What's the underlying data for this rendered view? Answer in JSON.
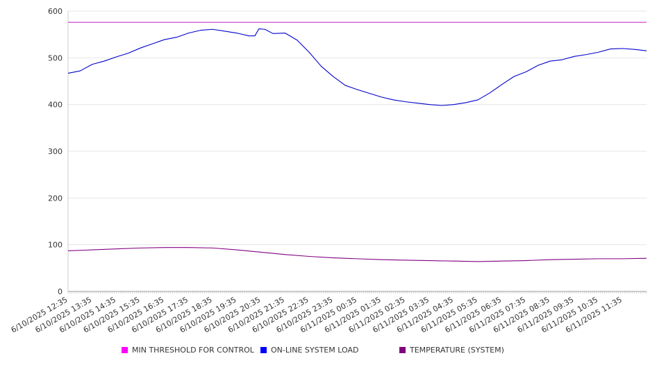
{
  "chart_data": {
    "type": "line",
    "title": "",
    "xlabel": "",
    "ylabel": "",
    "ylim": [
      0,
      600
    ],
    "y_ticks": [
      0,
      100,
      200,
      300,
      400,
      500,
      600
    ],
    "grid": "horizontal",
    "legend_position": "bottom",
    "x_tick_labels": [
      "6/10/2025 12:35",
      "6/10/2025 13:35",
      "6/10/2025 14:35",
      "6/10/2025 15:35",
      "6/10/2025 16:35",
      "6/10/2025 17:35",
      "6/10/2025 18:35",
      "6/10/2025 19:35",
      "6/10/2025 20:35",
      "6/10/2025 21:35",
      "6/10/2025 22:35",
      "6/10/2025 23:35",
      "6/11/2025 00:35",
      "6/11/2025 01:35",
      "6/11/2025 02:35",
      "6/11/2025 03:35",
      "6/11/2025 04:35",
      "6/11/2025 05:35",
      "6/11/2025 06:35",
      "6/11/2025 07:35",
      "6/11/2025 08:35",
      "6/11/2025 09:35",
      "6/11/2025 10:35",
      "6/11/2025 11:35"
    ],
    "x_range": [
      "6/10/2025 12:35",
      "6/11/2025 12:35"
    ],
    "series": [
      {
        "name": "MIN THRESHOLD FOR CONTROL",
        "color": "#cc33cc",
        "swatch_color": "#ff00ff",
        "points": [
          [
            "6/10/2025 12:35",
            576
          ],
          [
            "6/11/2025 12:35",
            576
          ]
        ]
      },
      {
        "name": "ON-LINE SYSTEM LOAD",
        "color": "#0000cc",
        "swatch_color": "#0000ff",
        "points": [
          [
            "6/10/2025 12:35",
            467
          ],
          [
            "6/10/2025 13:05",
            472
          ],
          [
            "6/10/2025 13:35",
            486
          ],
          [
            "6/10/2025 14:05",
            493
          ],
          [
            "6/10/2025 14:35",
            502
          ],
          [
            "6/10/2025 15:05",
            510
          ],
          [
            "6/10/2025 15:35",
            521
          ],
          [
            "6/10/2025 16:05",
            530
          ],
          [
            "6/10/2025 16:35",
            539
          ],
          [
            "6/10/2025 17:05",
            544
          ],
          [
            "6/10/2025 17:35",
            553
          ],
          [
            "6/10/2025 18:05",
            559
          ],
          [
            "6/10/2025 18:35",
            561
          ],
          [
            "6/10/2025 19:05",
            557
          ],
          [
            "6/10/2025 19:35",
            553
          ],
          [
            "6/10/2025 20:05",
            547
          ],
          [
            "6/10/2025 20:20",
            547
          ],
          [
            "6/10/2025 20:30",
            562
          ],
          [
            "6/10/2025 20:45",
            561
          ],
          [
            "6/10/2025 21:05",
            552
          ],
          [
            "6/10/2025 21:35",
            553
          ],
          [
            "6/10/2025 22:05",
            538
          ],
          [
            "6/10/2025 22:35",
            512
          ],
          [
            "6/10/2025 23:05",
            482
          ],
          [
            "6/10/2025 23:35",
            460
          ],
          [
            "6/11/2025 00:05",
            441
          ],
          [
            "6/11/2025 00:35",
            432
          ],
          [
            "6/11/2025 01:05",
            424
          ],
          [
            "6/11/2025 01:35",
            416
          ],
          [
            "6/11/2025 02:05",
            410
          ],
          [
            "6/11/2025 02:35",
            406
          ],
          [
            "6/11/2025 03:05",
            403
          ],
          [
            "6/11/2025 03:35",
            400
          ],
          [
            "6/11/2025 04:05",
            398
          ],
          [
            "6/11/2025 04:35",
            400
          ],
          [
            "6/11/2025 05:05",
            404
          ],
          [
            "6/11/2025 05:35",
            410
          ],
          [
            "6/11/2025 06:05",
            425
          ],
          [
            "6/11/2025 06:35",
            443
          ],
          [
            "6/11/2025 07:05",
            460
          ],
          [
            "6/11/2025 07:35",
            470
          ],
          [
            "6/11/2025 08:05",
            484
          ],
          [
            "6/11/2025 08:35",
            493
          ],
          [
            "6/11/2025 09:05",
            496
          ],
          [
            "6/11/2025 09:35",
            503
          ],
          [
            "6/11/2025 10:05",
            507
          ],
          [
            "6/11/2025 10:35",
            512
          ],
          [
            "6/11/2025 11:05",
            519
          ],
          [
            "6/11/2025 11:35",
            520
          ],
          [
            "6/11/2025 12:05",
            518
          ],
          [
            "6/11/2025 12:35",
            515
          ]
        ]
      },
      {
        "name": "TEMPERATURE (SYSTEM)",
        "color": "#800080",
        "swatch_color": "#800080",
        "points": [
          [
            "6/10/2025 12:35",
            87
          ],
          [
            "6/10/2025 13:35",
            89
          ],
          [
            "6/10/2025 14:35",
            91
          ],
          [
            "6/10/2025 15:35",
            93
          ],
          [
            "6/10/2025 16:35",
            94
          ],
          [
            "6/10/2025 17:35",
            94
          ],
          [
            "6/10/2025 18:35",
            93
          ],
          [
            "6/10/2025 19:35",
            89
          ],
          [
            "6/10/2025 20:35",
            84
          ],
          [
            "6/10/2025 21:35",
            79
          ],
          [
            "6/10/2025 22:35",
            75
          ],
          [
            "6/10/2025 23:35",
            72
          ],
          [
            "6/11/2025 00:35",
            70
          ],
          [
            "6/11/2025 01:35",
            68
          ],
          [
            "6/11/2025 02:35",
            67
          ],
          [
            "6/11/2025 03:35",
            66
          ],
          [
            "6/11/2025 04:35",
            65
          ],
          [
            "6/11/2025 05:35",
            64
          ],
          [
            "6/11/2025 06:35",
            65
          ],
          [
            "6/11/2025 07:35",
            66
          ],
          [
            "6/11/2025 08:35",
            68
          ],
          [
            "6/11/2025 09:35",
            69
          ],
          [
            "6/11/2025 10:35",
            70
          ],
          [
            "6/11/2025 11:35",
            70
          ],
          [
            "6/11/2025 12:35",
            71
          ]
        ]
      }
    ]
  }
}
